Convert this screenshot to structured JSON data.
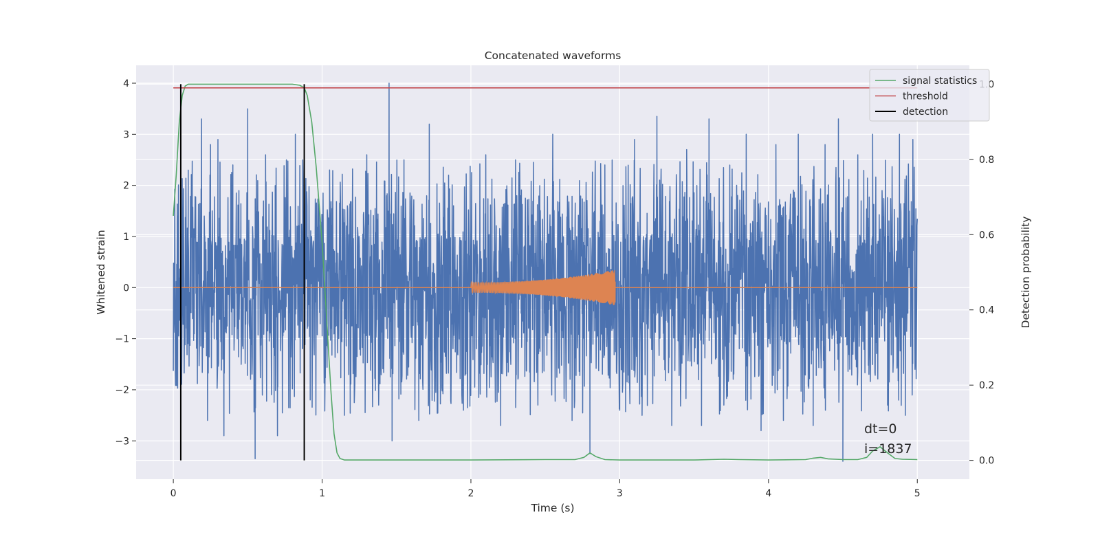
{
  "chart_data": {
    "type": "line",
    "title": "Concatenated waveforms",
    "xlabel": "Time (s)",
    "ylabel": "Whitened strain",
    "y2label": "Detection probability",
    "xlim": [
      -0.25,
      5.35
    ],
    "ylim": [
      -3.75,
      4.35
    ],
    "y2lim": [
      -0.05,
      1.05
    ],
    "xticks": [
      0,
      1,
      2,
      3,
      4,
      5
    ],
    "yticks": [
      -3,
      -2,
      -1,
      0,
      1,
      2,
      3,
      4
    ],
    "y2ticks": [
      0.0,
      0.2,
      0.4,
      0.6,
      0.8,
      1.0
    ],
    "xtick_labels": [
      "0",
      "1",
      "2",
      "3",
      "4",
      "5"
    ],
    "ytick_labels": [
      "−3",
      "−2",
      "−1",
      "0",
      "1",
      "2",
      "3",
      "4"
    ],
    "y2tick_labels": [
      "0.0",
      "0.2",
      "0.4",
      "0.6",
      "0.8",
      "1.0"
    ],
    "grid": true,
    "legend_position": "top-right",
    "colors": {
      "strain": "#4c72b0",
      "injection": "#dd8452",
      "signal_statistics": "#55a868",
      "threshold": "#c44e52",
      "detection": "#000000",
      "axes_background": "#eaeaf2",
      "grid": "#ffffff"
    },
    "series": [
      {
        "name": "signal statistics",
        "axis": "right",
        "x": [
          0.0,
          0.02,
          0.04,
          0.06,
          0.08,
          0.1,
          0.15,
          0.2,
          0.4,
          0.6,
          0.8,
          0.85,
          0.88,
          0.9,
          0.93,
          0.96,
          1.0,
          1.03,
          1.06,
          1.08,
          1.1,
          1.12,
          1.15,
          1.2,
          1.5,
          2.0,
          2.5,
          2.7,
          2.76,
          2.8,
          2.84,
          2.9,
          3.0,
          3.5,
          3.7,
          3.8,
          4.0,
          4.25,
          4.3,
          4.35,
          4.4,
          4.5,
          4.6,
          4.66,
          4.7,
          4.75,
          4.8,
          4.85,
          4.9,
          5.0
        ],
        "values": [
          0.65,
          0.76,
          0.9,
          0.97,
          0.995,
          1.0,
          1.0,
          1.0,
          1.0,
          1.0,
          1.0,
          0.997,
          0.99,
          0.97,
          0.9,
          0.78,
          0.58,
          0.38,
          0.18,
          0.07,
          0.02,
          0.005,
          0.001,
          0.001,
          0.001,
          0.001,
          0.002,
          0.002,
          0.008,
          0.02,
          0.01,
          0.002,
          0.001,
          0.001,
          0.003,
          0.002,
          0.001,
          0.002,
          0.006,
          0.008,
          0.004,
          0.002,
          0.002,
          0.008,
          0.025,
          0.036,
          0.02,
          0.005,
          0.003,
          0.002
        ]
      },
      {
        "name": "threshold",
        "axis": "right",
        "x": [
          0.0,
          5.0
        ],
        "values": [
          0.99,
          0.99
        ]
      },
      {
        "name": "detection",
        "axis": "right",
        "type": "vlines",
        "x": [
          0.05,
          0.88
        ],
        "ymin": 0.0,
        "ymax": 1.0
      }
    ],
    "unlabeled_series": [
      {
        "key": "strain",
        "description_of_shape": "dense whitened noise trace from t=0 to t=5 s, mostly within about ±1 with excursions to about +4 and −3.3",
        "x_range": [
          0,
          5
        ],
        "band": [
          -1.0,
          1.0
        ],
        "spikes": [
          {
            "x": 0.03,
            "y": 1.4
          },
          {
            "x": 0.05,
            "y": -2.65
          },
          {
            "x": 0.1,
            "y": 2.3
          },
          {
            "x": 0.19,
            "y": 3.3
          },
          {
            "x": 0.23,
            "y": -2.6
          },
          {
            "x": 0.25,
            "y": 2.8
          },
          {
            "x": 0.3,
            "y": 2.9
          },
          {
            "x": 0.34,
            "y": -2.9
          },
          {
            "x": 0.4,
            "y": 2.4
          },
          {
            "x": 0.5,
            "y": 3.5
          },
          {
            "x": 0.55,
            "y": -3.35
          },
          {
            "x": 0.62,
            "y": 2.6
          },
          {
            "x": 0.7,
            "y": -2.9
          },
          {
            "x": 0.76,
            "y": 2.5
          },
          {
            "x": 0.82,
            "y": 3.0
          },
          {
            "x": 0.87,
            "y": 2.5
          },
          {
            "x": 0.92,
            "y": -2.2
          },
          {
            "x": 1.05,
            "y": 1.8
          },
          {
            "x": 1.15,
            "y": -2.5
          },
          {
            "x": 1.3,
            "y": 2.6
          },
          {
            "x": 1.38,
            "y": -2.3
          },
          {
            "x": 1.45,
            "y": 4.0
          },
          {
            "x": 1.47,
            "y": -3.0
          },
          {
            "x": 1.55,
            "y": 2.5
          },
          {
            "x": 1.65,
            "y": -2.6
          },
          {
            "x": 1.72,
            "y": 3.2
          },
          {
            "x": 1.85,
            "y": 2.2
          },
          {
            "x": 1.95,
            "y": -2.4
          },
          {
            "x": 2.1,
            "y": 2.6
          },
          {
            "x": 2.2,
            "y": -2.7
          },
          {
            "x": 2.3,
            "y": 2.5
          },
          {
            "x": 2.45,
            "y": -2.3
          },
          {
            "x": 2.55,
            "y": 3.0
          },
          {
            "x": 2.68,
            "y": -2.6
          },
          {
            "x": 2.8,
            "y": -3.25
          },
          {
            "x": 2.9,
            "y": 2.4
          },
          {
            "x": 3.0,
            "y": -2.4
          },
          {
            "x": 3.1,
            "y": 2.9
          },
          {
            "x": 3.15,
            "y": -2.5
          },
          {
            "x": 3.25,
            "y": 3.35
          },
          {
            "x": 3.35,
            "y": -2.7
          },
          {
            "x": 3.45,
            "y": 2.7
          },
          {
            "x": 3.55,
            "y": -2.7
          },
          {
            "x": 3.6,
            "y": 3.3
          },
          {
            "x": 3.7,
            "y": -2.3
          },
          {
            "x": 3.85,
            "y": 3.0
          },
          {
            "x": 3.95,
            "y": -2.8
          },
          {
            "x": 4.05,
            "y": 2.8
          },
          {
            "x": 4.1,
            "y": -2.6
          },
          {
            "x": 4.2,
            "y": 3.0
          },
          {
            "x": 4.3,
            "y": -2.7
          },
          {
            "x": 4.38,
            "y": 2.8
          },
          {
            "x": 4.47,
            "y": 3.3
          },
          {
            "x": 4.5,
            "y": -3.4
          },
          {
            "x": 4.6,
            "y": 2.6
          },
          {
            "x": 4.7,
            "y": 3.0
          },
          {
            "x": 4.8,
            "y": -2.3
          },
          {
            "x": 4.88,
            "y": 3.0
          },
          {
            "x": 4.92,
            "y": -2.5
          },
          {
            "x": 4.97,
            "y": 2.9
          }
        ]
      },
      {
        "key": "injection",
        "description_of_shape": "orange trace at 0 except an injected chirp from t=2 to t=3 s whose amplitude grows from about 0.1 to about 0.35",
        "x_range": [
          0,
          5
        ],
        "chirp": {
          "start": 2.0,
          "end": 2.97,
          "amp_start": 0.1,
          "amp_end": 0.35
        }
      }
    ],
    "annotations": [
      "dt=0",
      "i=1837"
    ]
  }
}
